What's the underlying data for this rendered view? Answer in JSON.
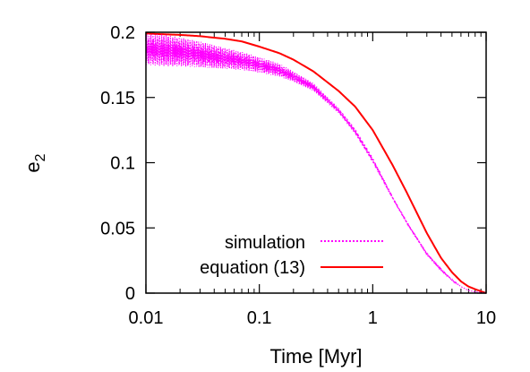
{
  "chart_data": {
    "type": "line",
    "title": "",
    "xlabel": "Time [Myr]",
    "ylabel_base": "e",
    "ylabel_sub": "2",
    "xscale": "log",
    "xlim": [
      0.01,
      10
    ],
    "ylim": [
      0,
      0.2
    ],
    "xticks": [
      {
        "value": 0.01,
        "label": "0.01"
      },
      {
        "value": 0.1,
        "label": "0.1"
      },
      {
        "value": 1,
        "label": "1"
      },
      {
        "value": 10,
        "label": "10"
      }
    ],
    "yticks": [
      {
        "value": 0,
        "label": "0"
      },
      {
        "value": 0.05,
        "label": "0.05"
      },
      {
        "value": 0.1,
        "label": "0.1"
      },
      {
        "value": 0.15,
        "label": "0.15"
      },
      {
        "value": 0.2,
        "label": "0.2"
      }
    ],
    "legend_position": "bottom-left",
    "series": [
      {
        "name": "simulation",
        "color": "#ff00ff",
        "style": "dotted",
        "x": [
          0.01,
          0.015,
          0.02,
          0.03,
          0.05,
          0.07,
          0.1,
          0.15,
          0.2,
          0.3,
          0.5,
          0.7,
          1.0,
          1.5,
          2.0,
          3.0,
          4.0,
          5.0,
          6.0,
          7.0,
          8.0,
          10.0
        ],
        "y": [
          0.187,
          0.186,
          0.185,
          0.183,
          0.18,
          0.178,
          0.175,
          0.171,
          0.166,
          0.158,
          0.14,
          0.124,
          0.102,
          0.073,
          0.054,
          0.03,
          0.018,
          0.01,
          0.005,
          0.002,
          0.001,
          0.0
        ],
        "amplitude": [
          0.012,
          0.012,
          0.011,
          0.01,
          0.008,
          0.007,
          0.006,
          0.005,
          0.004,
          0.003,
          0.002,
          0.002,
          0.002,
          0.001,
          0.001,
          0.001,
          0.001,
          0.0005,
          0.0,
          0.0,
          0.0,
          0.0
        ]
      },
      {
        "name": "equation (13)",
        "color": "#ff0000",
        "style": "solid",
        "x": [
          0.01,
          0.02,
          0.03,
          0.05,
          0.07,
          0.1,
          0.15,
          0.2,
          0.3,
          0.5,
          0.7,
          1.0,
          1.5,
          2.0,
          3.0,
          4.0,
          5.0,
          6.0,
          7.0,
          8.0,
          10.0
        ],
        "y": [
          0.199,
          0.198,
          0.197,
          0.195,
          0.193,
          0.189,
          0.184,
          0.179,
          0.17,
          0.155,
          0.143,
          0.125,
          0.098,
          0.077,
          0.046,
          0.027,
          0.016,
          0.009,
          0.005,
          0.003,
          0.0
        ]
      }
    ]
  }
}
